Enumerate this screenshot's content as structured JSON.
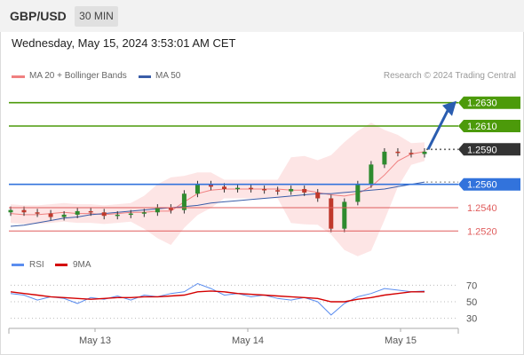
{
  "header": {
    "symbol": "GBP/USD",
    "timeframe": "30 MIN",
    "datetime": "Wednesday, May 15, 2024 3:53:01 AM CET"
  },
  "legend": {
    "bollinger_label": "MA 20 + Bollinger Bands",
    "ma50_label": "MA 50",
    "research_label": "Research © 2024 Trading Central",
    "rsi_label": "RSI",
    "ma9_label": "9MA"
  },
  "colors": {
    "bollinger": "#f08080",
    "bollinger_fill": "#fde0e0",
    "ma50": "#3a5da8",
    "resistance": "#4c9a0a",
    "pivot": "#3273dc",
    "support": "#e05d5d",
    "current": "#333333",
    "up_candle": "#2e8b2e",
    "down_candle": "#c0392b",
    "rsi": "#5b8def",
    "rsi_ma": "#d40000",
    "arrow": "#2a5db0"
  },
  "chart_data": [
    {
      "type": "line",
      "title": "",
      "ylim": [
        1.2505,
        1.2645
      ],
      "x_tick_labels": [
        "May 13",
        "May 14",
        "May 15"
      ],
      "price_levels": [
        {
          "value": 1.263,
          "label": "1.2630",
          "kind": "resistance"
        },
        {
          "value": 1.261,
          "label": "1.2610",
          "kind": "resistance"
        },
        {
          "value": 1.259,
          "label": "1.2590",
          "kind": "current"
        },
        {
          "value": 1.256,
          "label": "1.2560",
          "kind": "pivot"
        },
        {
          "value": 1.254,
          "label": "1.2540",
          "kind": "support"
        },
        {
          "value": 1.252,
          "label": "1.2520",
          "kind": "support"
        }
      ],
      "series": [
        {
          "name": "MA 20 + Bollinger Bands",
          "values": [
            1.2535,
            1.2534,
            1.2534,
            1.2535,
            1.2536,
            1.2535,
            1.2535,
            1.2534,
            1.2535,
            1.2536,
            1.2536,
            1.2537,
            1.2537,
            1.2545,
            1.2552,
            1.2555,
            1.2556,
            1.2556,
            1.2556,
            1.2556,
            1.2556,
            1.2555,
            1.2555,
            1.2553,
            1.2551,
            1.255,
            1.2552,
            1.2558,
            1.2568,
            1.258,
            1.2586,
            1.2588
          ]
        },
        {
          "name": "MA 50",
          "values": [
            1.2524,
            1.2525,
            1.2527,
            1.2529,
            1.2531,
            1.2532,
            1.2534,
            1.2535,
            1.2536,
            1.2537,
            1.2538,
            1.2539,
            1.254,
            1.2541,
            1.2542,
            1.2544,
            1.2545,
            1.2546,
            1.2547,
            1.2548,
            1.2549,
            1.255,
            1.2551,
            1.2552,
            1.2552,
            1.2553,
            1.2554,
            1.2555,
            1.2556,
            1.2558,
            1.256,
            1.2562
          ]
        },
        {
          "name": "Price",
          "values": [
            1.2538,
            1.2536,
            1.2535,
            1.2532,
            1.2534,
            1.2537,
            1.2536,
            1.2533,
            1.2534,
            1.2535,
            1.2536,
            1.254,
            1.2538,
            1.2552,
            1.256,
            1.2558,
            1.2556,
            1.2557,
            1.2556,
            1.2555,
            1.2554,
            1.2556,
            1.2553,
            1.2548,
            1.2522,
            1.2545,
            1.256,
            1.2577,
            1.2588,
            1.2587,
            1.2586,
            1.2588
          ]
        }
      ],
      "forecast_arrow": {
        "from": 1.259,
        "to": 1.263
      }
    },
    {
      "type": "line",
      "title": "",
      "ylim": [
        20,
        80
      ],
      "y_ticks": [
        70,
        50,
        30
      ],
      "series": [
        {
          "name": "RSI",
          "values": [
            60,
            58,
            52,
            56,
            54,
            48,
            55,
            53,
            57,
            52,
            58,
            56,
            60,
            62,
            72,
            66,
            58,
            60,
            56,
            58,
            54,
            52,
            55,
            50,
            34,
            48,
            56,
            60,
            66,
            64,
            62,
            63
          ]
        },
        {
          "name": "9MA",
          "values": [
            62,
            60,
            58,
            56,
            55,
            54,
            53,
            54,
            55,
            55,
            56,
            56,
            57,
            58,
            62,
            63,
            62,
            60,
            59,
            58,
            57,
            56,
            55,
            54,
            50,
            50,
            53,
            55,
            58,
            60,
            62,
            62
          ]
        }
      ]
    }
  ]
}
